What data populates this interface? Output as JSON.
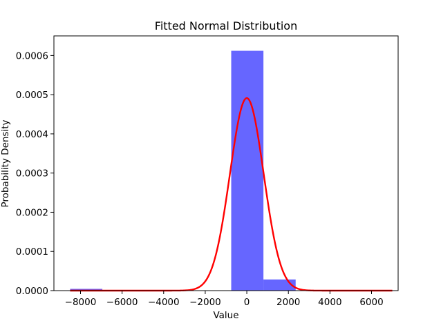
{
  "chart_data": {
    "type": "bar",
    "title": "Fitted Normal Distribution",
    "xlabel": "Value",
    "ylabel": "Probability Density",
    "xlim": [
      -9280,
      7280
    ],
    "ylim": [
      0,
      0.00065
    ],
    "xticks": [
      -8000,
      -6000,
      -4000,
      -2000,
      0,
      2000,
      4000,
      6000
    ],
    "xtick_labels": [
      "−8000",
      "−6000",
      "−4000",
      "−2000",
      "0",
      "2000",
      "4000",
      "6000"
    ],
    "yticks": [
      0,
      0.0001,
      0.0002,
      0.0003,
      0.0004,
      0.0005,
      0.0006
    ],
    "ytick_labels": [
      "0.0000",
      "0.0001",
      "0.0002",
      "0.0003",
      "0.0004",
      "0.0005",
      "0.0006"
    ],
    "grid": false,
    "histogram": {
      "color": "#0000ff",
      "bins": [
        {
          "start": -8500,
          "end": -6950,
          "value": 4.5e-06
        },
        {
          "start": -6950,
          "end": -5400,
          "value": 0
        },
        {
          "start": -5400,
          "end": -3850,
          "value": 0
        },
        {
          "start": -3850,
          "end": -2300,
          "value": 0
        },
        {
          "start": -2300,
          "end": -750,
          "value": 0
        },
        {
          "start": -750,
          "end": 800,
          "value": 0.000612
        },
        {
          "start": 800,
          "end": 2350,
          "value": 2.85e-05
        }
      ]
    },
    "fit_curve": {
      "type": "normal-pdf",
      "mu": 0,
      "sigma": 812,
      "x_range": [
        -8500,
        7000
      ],
      "color": "#ff0000"
    }
  }
}
